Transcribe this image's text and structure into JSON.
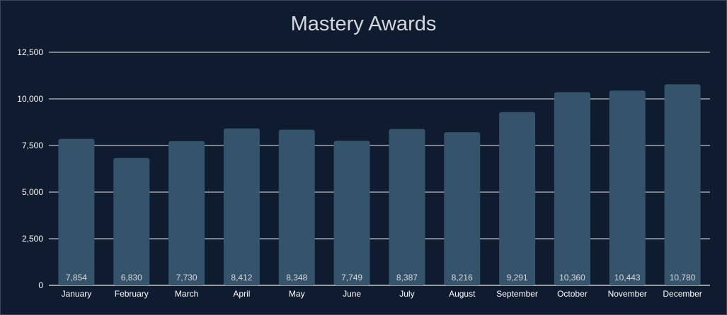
{
  "chart_data": {
    "type": "bar",
    "title": "Mastery Awards",
    "xlabel": "",
    "ylabel": "",
    "categories": [
      "January",
      "February",
      "March",
      "April",
      "May",
      "June",
      "July",
      "August",
      "September",
      "October",
      "November",
      "December"
    ],
    "values": [
      7854,
      6830,
      7730,
      8412,
      8348,
      7749,
      8387,
      8216,
      9291,
      10360,
      10443,
      10780
    ],
    "data_labels": [
      "7,854",
      "6,830",
      "7,730",
      "8,412",
      "8,348",
      "7,749",
      "8,387",
      "8,216",
      "9,291",
      "10,360",
      "10,443",
      "10,780"
    ],
    "yticks": [
      0,
      2500,
      5000,
      7500,
      10000,
      12500
    ],
    "ytick_labels": [
      "0",
      "2,500",
      "5,000",
      "7,500",
      "10,000",
      "12,500"
    ],
    "ylim": [
      0,
      12500
    ],
    "grid": true,
    "legend": "none",
    "colors": {
      "background": "#0f1b2e",
      "bar": "#35536b",
      "gridline": "#e8ebef",
      "text": "#d4d8de",
      "label": "#ffffff"
    }
  }
}
